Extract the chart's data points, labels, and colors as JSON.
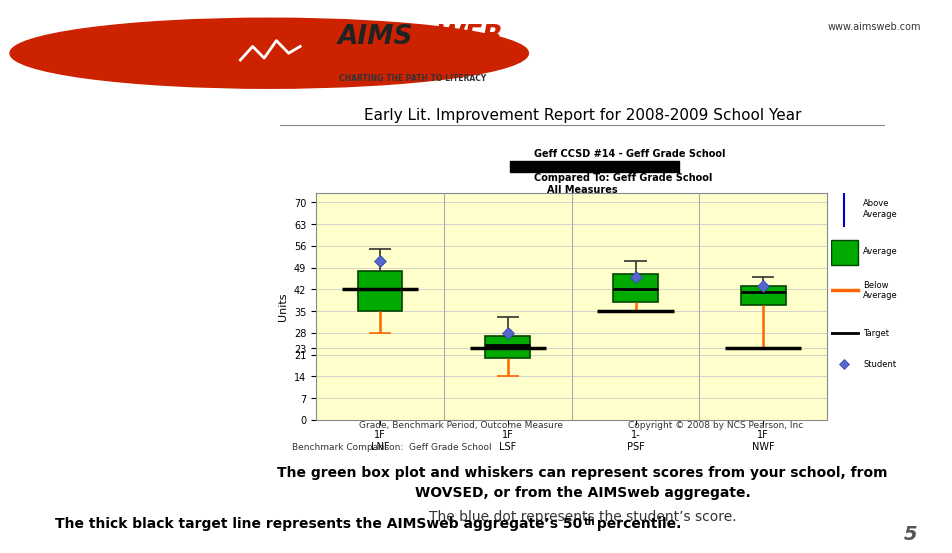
{
  "title": "Early Lit. Improvement Report for 2008-2009 School Year",
  "subtitle1": "Geff CCSD #14 - Geff Grade School",
  "subtitle2": "Compared To: Geff Grade School",
  "subtitle3": "All Measures",
  "header_bg": "#F5C400",
  "header_text": "www.aimsweb.com",
  "chart_bg": "#FFFFCC",
  "ylabel": "Units",
  "yticks": [
    0,
    7,
    14,
    21,
    23,
    28,
    35,
    42,
    49,
    56,
    63,
    70
  ],
  "ytick_labels": [
    "0",
    "7",
    "14",
    "21",
    "23",
    "28",
    "35",
    "42",
    "49",
    "56",
    "63",
    "70"
  ],
  "ylim": [
    0,
    73
  ],
  "xlabel_bottom": "Grade, Benchmark Period, Outcome Measure",
  "copyright": "Copyright © 2008 by NCS Pearson, Inc",
  "benchmark_label": "Benchmark Comparison:  Geff Grade School",
  "groups": [
    "1F\nLNF",
    "1F\nLSF",
    "1-\nPSF",
    "1F\nNWF"
  ],
  "boxes": [
    {
      "q1": 35,
      "median": 42,
      "q3": 48,
      "whisker_low": 28,
      "whisker_high": 55,
      "color": "#00AA00",
      "student": 51,
      "target": 42
    },
    {
      "q1": 20,
      "median": 24,
      "q3": 27,
      "whisker_low": 14,
      "whisker_high": 33,
      "color": "#00AA00",
      "student": 28,
      "target": 23
    },
    {
      "q1": 38,
      "median": 42,
      "q3": 47,
      "whisker_low": 35,
      "whisker_high": 51,
      "color": "#00AA00",
      "student": 46,
      "target": 35
    },
    {
      "q1": 37,
      "median": 41,
      "q3": 43,
      "whisker_low": 23,
      "whisker_high": 46,
      "color": "#00AA00",
      "student": 43,
      "target": 23
    }
  ],
  "text_line1": "The green box plot and whiskers can represent scores from your school, from",
  "text_line2": "WOVSED, or from the AIMSweb aggregate.",
  "text_line3": "The blue dot represents the student’s score.",
  "text_line4_pre": "The thick black target line represents the AIMSweb aggregate’s 50",
  "text_line4_sup": "th",
  "text_line4_post": " percentile.",
  "page_number": "5"
}
